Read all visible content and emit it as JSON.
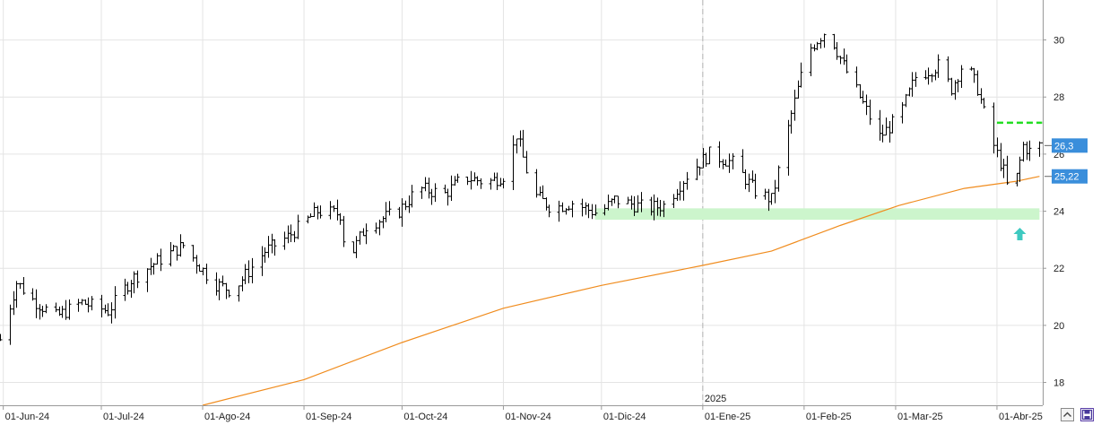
{
  "chart_data": {
    "type": "ohlc",
    "title": "",
    "xlabel": "",
    "ylabel": "",
    "ylim": [
      17.2,
      31.4
    ],
    "y_ticks": [
      18,
      20,
      22,
      24,
      26,
      28,
      30
    ],
    "y_tick_labels": [
      "18",
      "20",
      "22",
      "24",
      "26",
      "28",
      "30"
    ],
    "x_tick_labels": [
      "01-Jun-24",
      "01-Jul-24",
      "01-Ago-24",
      "01-Sep-24",
      "01-Oct-24",
      "01-Nov-24",
      "01-Dic-24",
      "01-Ene-25",
      "01-Feb-25",
      "01-Mar-25",
      "01-Abr-25"
    ],
    "x_tick_dates": [
      "2024-06-01",
      "2024-07-01",
      "2024-08-01",
      "2024-09-01",
      "2024-10-01",
      "2024-11-01",
      "2024-12-01",
      "2025-01-01",
      "2025-02-01",
      "2025-03-01",
      "2025-04-01"
    ],
    "x_range": [
      "2024-05-31",
      "2025-04-15"
    ],
    "year_divider": {
      "date": "2025-01-01",
      "label": "2025"
    },
    "grid": true,
    "price_keypoints": [
      [
        "2024-05-31",
        19.5
      ],
      [
        "2024-06-05",
        21.5
      ],
      [
        "2024-06-10",
        20.9
      ],
      [
        "2024-06-17",
        20.3
      ],
      [
        "2024-06-25",
        20.8
      ],
      [
        "2024-07-03",
        20.5
      ],
      [
        "2024-07-10",
        21.6
      ],
      [
        "2024-07-20",
        22.4
      ],
      [
        "2024-07-26",
        22.8
      ],
      [
        "2024-08-04",
        21.5
      ],
      [
        "2024-08-10",
        21.2
      ],
      [
        "2024-08-20",
        22.6
      ],
      [
        "2024-08-27",
        23.1
      ],
      [
        "2024-09-05",
        24.0
      ],
      [
        "2024-09-12",
        23.9
      ],
      [
        "2024-09-14",
        22.2
      ],
      [
        "2024-09-20",
        23.5
      ],
      [
        "2024-09-30",
        24.0
      ],
      [
        "2024-10-06",
        24.8
      ],
      [
        "2024-10-14",
        24.6
      ],
      [
        "2024-10-20",
        25.2
      ],
      [
        "2024-10-27",
        25.0
      ],
      [
        "2024-11-02",
        25.3
      ],
      [
        "2024-11-05",
        26.7
      ],
      [
        "2024-11-10",
        24.6
      ],
      [
        "2024-11-16",
        24.1
      ],
      [
        "2024-11-22",
        24.3
      ],
      [
        "2024-11-30",
        23.9
      ],
      [
        "2024-12-05",
        24.4
      ],
      [
        "2024-12-15",
        24.1
      ],
      [
        "2024-12-20",
        24.2
      ],
      [
        "2024-12-28",
        25.4
      ],
      [
        "2025-01-03",
        26.0
      ],
      [
        "2025-01-10",
        25.7
      ],
      [
        "2025-01-17",
        24.7
      ],
      [
        "2025-01-22",
        24.4
      ],
      [
        "2025-01-28",
        27.4
      ],
      [
        "2025-02-02",
        29.6
      ],
      [
        "2025-02-08",
        30.4
      ],
      [
        "2025-02-13",
        29.1
      ],
      [
        "2025-02-18",
        28.0
      ],
      [
        "2025-02-24",
        26.6
      ],
      [
        "2025-03-02",
        27.3
      ],
      [
        "2025-03-07",
        28.7
      ],
      [
        "2025-03-14",
        29.1
      ],
      [
        "2025-03-18",
        28.3
      ],
      [
        "2025-03-22",
        29.3
      ],
      [
        "2025-03-26",
        28.3
      ],
      [
        "2025-03-30",
        26.6
      ],
      [
        "2025-04-03",
        25.4
      ],
      [
        "2025-04-05",
        24.4
      ],
      [
        "2025-04-07",
        25.2
      ],
      [
        "2025-04-09",
        26.3
      ],
      [
        "2025-04-12",
        26.0
      ],
      [
        "2025-04-14",
        26.3
      ]
    ],
    "moving_average_keypoints": [
      [
        "2024-08-01",
        17.2
      ],
      [
        "2024-09-01",
        18.1
      ],
      [
        "2024-10-01",
        19.4
      ],
      [
        "2024-11-01",
        20.6
      ],
      [
        "2024-12-01",
        21.4
      ],
      [
        "2025-01-01",
        22.1
      ],
      [
        "2025-01-22",
        22.6
      ],
      [
        "2025-02-12",
        23.5
      ],
      [
        "2025-03-02",
        24.2
      ],
      [
        "2025-03-22",
        24.8
      ],
      [
        "2025-04-07",
        25.05
      ],
      [
        "2025-04-14",
        25.22
      ]
    ],
    "series": [
      {
        "type": "ohlc",
        "color": "#000000"
      },
      {
        "type": "line",
        "color": "#f08c1e"
      }
    ],
    "annotations": {
      "resistance_line": {
        "value": 27.1,
        "from": "2025-04-01",
        "to": "2025-04-14",
        "color": "#22dd22",
        "style": "dashed"
      },
      "support_zone": {
        "low": 23.7,
        "high": 24.1,
        "from": "2024-11-29",
        "to": "2025-04-14",
        "color": "#ccf5cc"
      },
      "arrow_up": {
        "date": "2025-04-08",
        "value": 23.2,
        "color": "#3ec9c0"
      }
    },
    "price_badges": [
      {
        "label": "26,3",
        "value": 26.3,
        "color": "#3a8edb"
      },
      {
        "label": "25,22",
        "value": 25.22,
        "color": "#3a8edb"
      }
    ]
  },
  "colors": {
    "background": "#ffffff",
    "grid": "#e4e4e4",
    "axis": "#9a9a9a",
    "candles": "#000000"
  },
  "icons": {
    "corner_left": "chevron-up-icon",
    "corner_right": "save-icon"
  }
}
